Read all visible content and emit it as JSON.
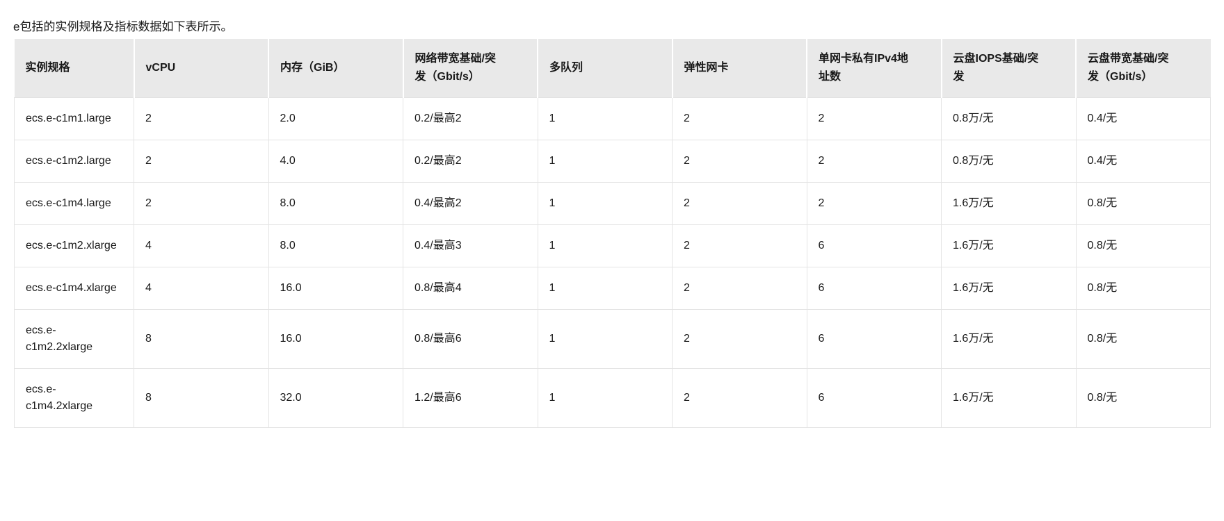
{
  "intro_text": "e包括的实例规格及指标数据如下表所示。",
  "table": {
    "columns": [
      "实例规格",
      "vCPU",
      "内存（GiB）",
      "网络带宽基础/突发（Gbit/s）",
      "多队列",
      "弹性网卡",
      "单网卡私有IPv4地址数",
      "云盘IOPS基础/突发",
      "云盘带宽基础/突发（Gbit/s）"
    ],
    "rows": [
      [
        "ecs.e-c1m1.large",
        "2",
        "2.0",
        "0.2/最高2",
        "1",
        "2",
        "2",
        "0.8万/无",
        "0.4/无"
      ],
      [
        "ecs.e-c1m2.large",
        "2",
        "4.0",
        "0.2/最高2",
        "1",
        "2",
        "2",
        "0.8万/无",
        "0.4/无"
      ],
      [
        "ecs.e-c1m4.large",
        "2",
        "8.0",
        "0.4/最高2",
        "1",
        "2",
        "2",
        "1.6万/无",
        "0.8/无"
      ],
      [
        "ecs.e-c1m2.xlarge",
        "4",
        "8.0",
        "0.4/最高3",
        "1",
        "2",
        "6",
        "1.6万/无",
        "0.8/无"
      ],
      [
        "ecs.e-c1m4.xlarge",
        "4",
        "16.0",
        "0.8/最高4",
        "1",
        "2",
        "6",
        "1.6万/无",
        "0.8/无"
      ],
      [
        "ecs.e-c1m2.2xlarge",
        "8",
        "16.0",
        "0.8/最高6",
        "1",
        "2",
        "6",
        "1.6万/无",
        "0.8/无"
      ],
      [
        "ecs.e-c1m4.2xlarge",
        "8",
        "32.0",
        "1.2/最高6",
        "1",
        "2",
        "6",
        "1.6万/无",
        "0.8/无"
      ]
    ]
  },
  "colors": {
    "header_bg": "#e9e9e9",
    "border": "#e4e4e4",
    "text": "#181818",
    "page_bg": "#ffffff"
  }
}
